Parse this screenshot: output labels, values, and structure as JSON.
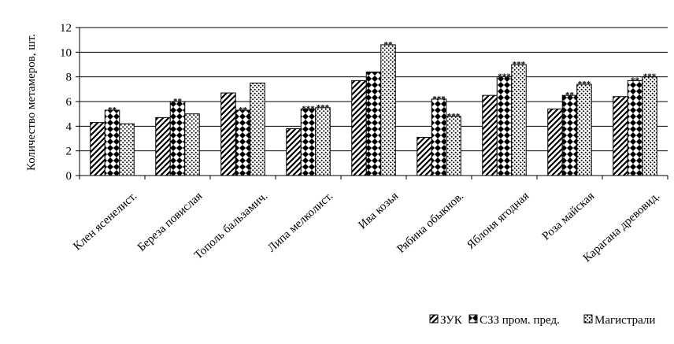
{
  "chart_data": {
    "type": "bar",
    "title": "",
    "ylabel": "Количество метамеров, шт.",
    "xlabel": "",
    "ylim": [
      0,
      12
    ],
    "yticks": [
      0,
      2,
      4,
      6,
      8,
      10,
      12
    ],
    "grid": true,
    "legend_position": "bottom-right",
    "categories": [
      "Клен ясенелист.",
      "Береза повислая",
      "Тополь бальзамич.",
      "Липа мелколист.",
      "Ива козья",
      "Рябина обыкнов.",
      "Яблоня ягодная",
      "Роза майская",
      "Карагана древовид."
    ],
    "series": [
      {
        "name": "ЗУК",
        "pattern": "diagonal",
        "values": [
          4.3,
          4.7,
          6.7,
          3.8,
          7.7,
          3.1,
          6.5,
          5.4,
          6.4
        ],
        "annotations": [
          "",
          "",
          "",
          "",
          "",
          "",
          "",
          "",
          ""
        ]
      },
      {
        "name": "СЗЗ пром. пред.",
        "pattern": "diamond",
        "values": [
          5.3,
          6.0,
          5.3,
          5.4,
          8.4,
          6.2,
          8.0,
          6.5,
          7.7
        ],
        "annotations": [
          "**",
          "**",
          "**",
          "***",
          "",
          "***",
          "***",
          "**",
          "**"
        ]
      },
      {
        "name": "Магистрали",
        "pattern": "dots",
        "values": [
          4.2,
          5.0,
          7.5,
          5.5,
          10.6,
          4.8,
          9.0,
          7.4,
          8.0
        ],
        "annotations": [
          "",
          "",
          "",
          "***",
          "**",
          "***",
          "***",
          "***",
          "***"
        ]
      }
    ]
  }
}
